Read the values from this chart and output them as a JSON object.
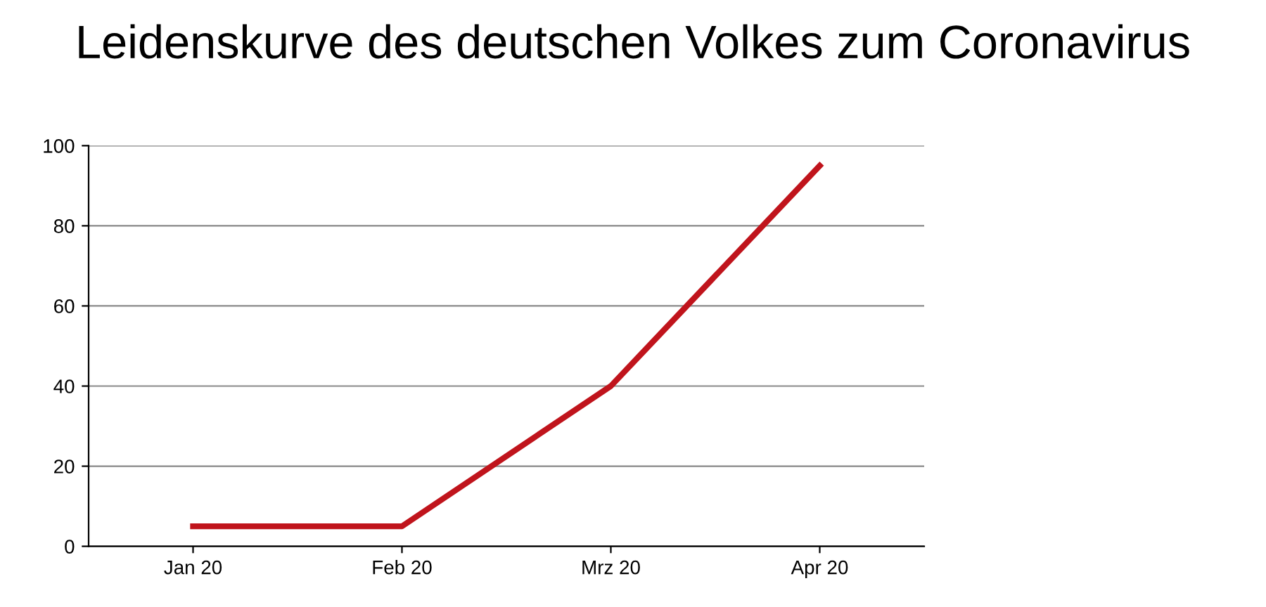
{
  "chart_data": {
    "type": "line",
    "title": "Leidenskurve des deutschen Volkes zum Coronavirus",
    "categories": [
      "Jan 20",
      "Feb 20",
      "Mrz 20",
      "Apr 20"
    ],
    "series": [
      {
        "color": "#c0141c",
        "values": [
          5,
          5,
          40,
          95
        ]
      }
    ],
    "ylim": [
      0,
      100
    ],
    "yticks": [
      0,
      20,
      40,
      60,
      80,
      100
    ],
    "grid": "y",
    "marker": "none",
    "line_style": "solid",
    "legend": false
  }
}
